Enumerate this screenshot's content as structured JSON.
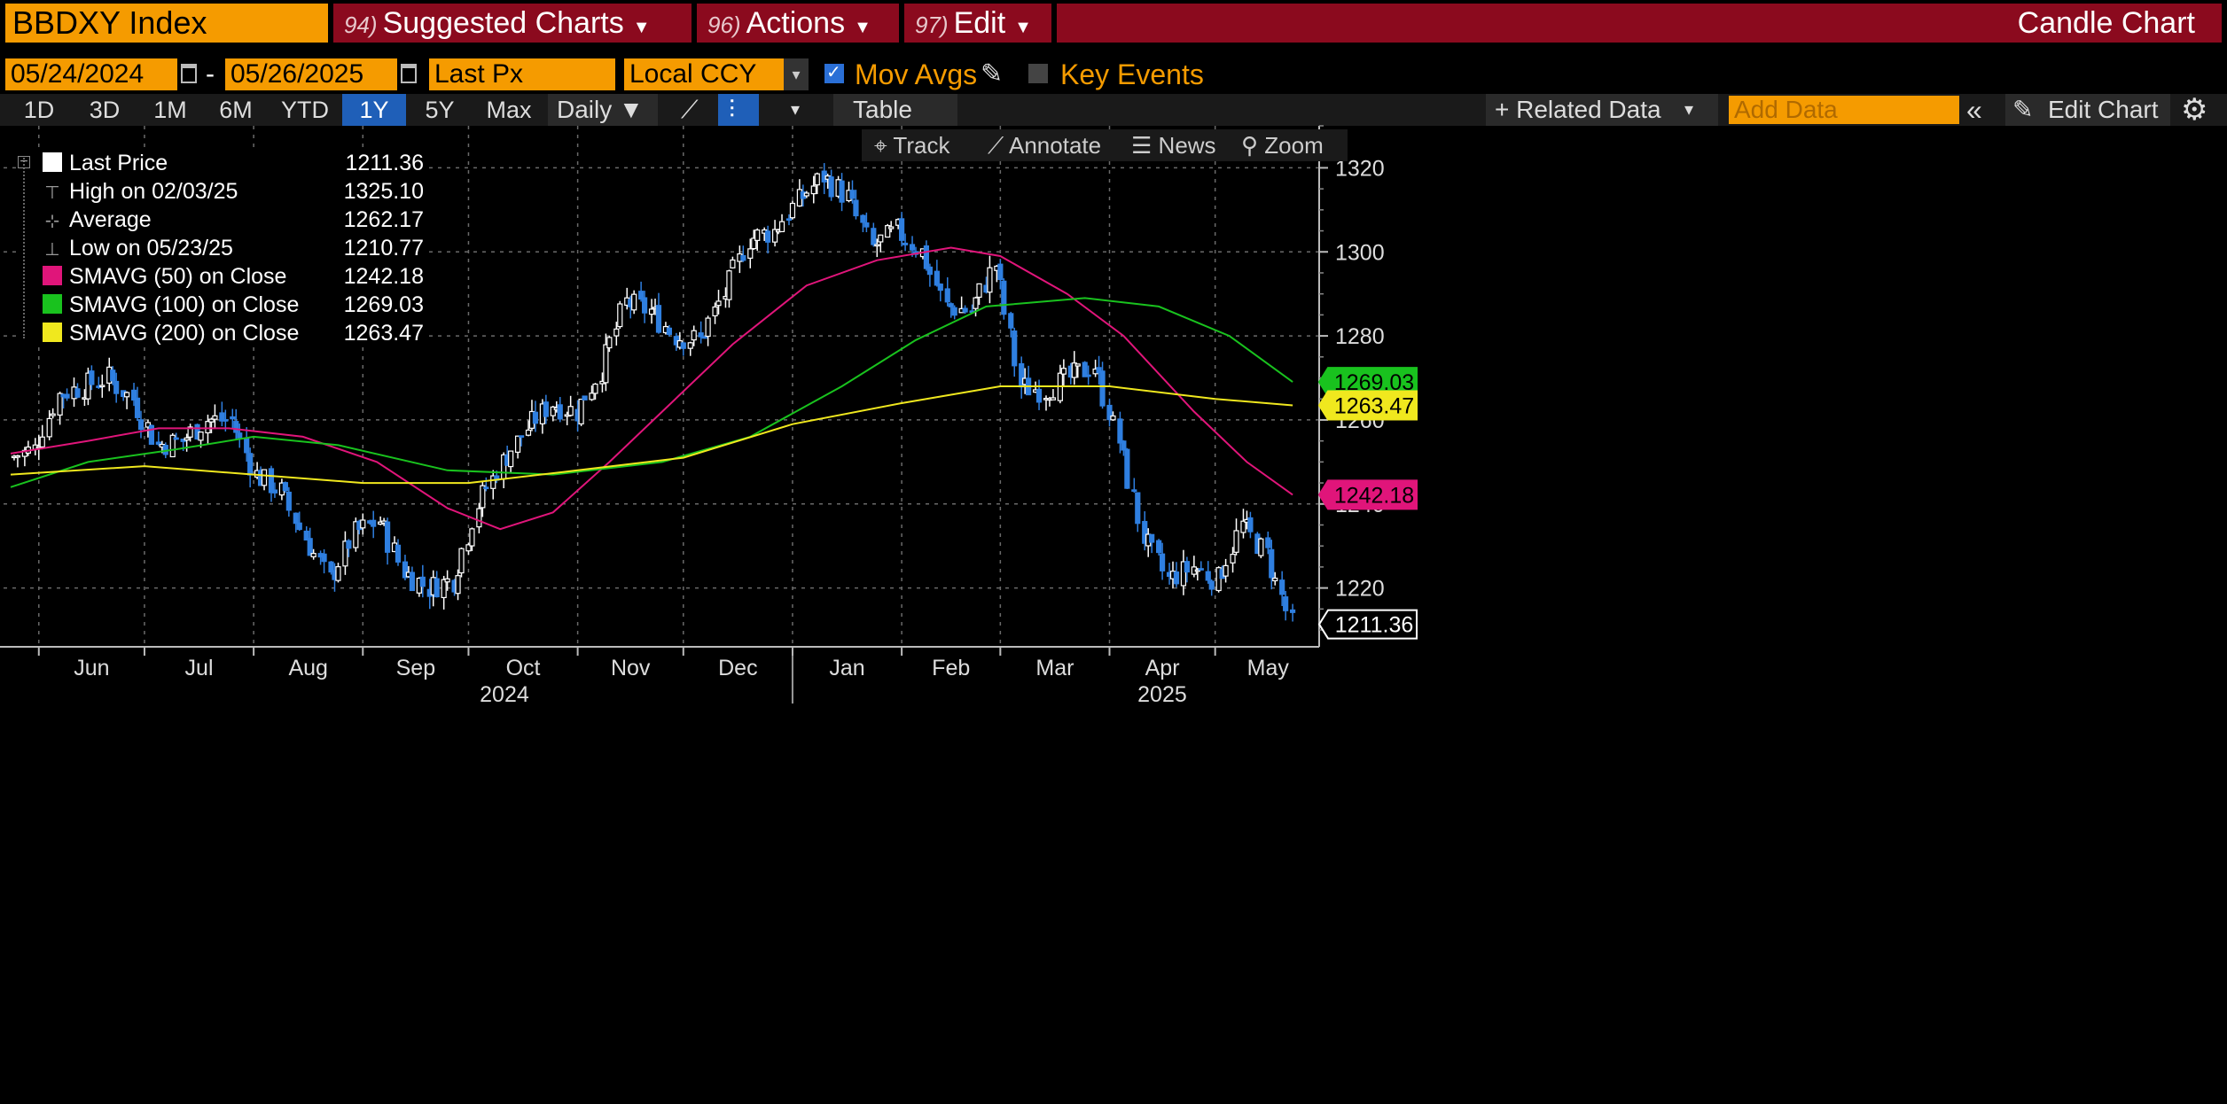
{
  "header": {
    "ticker": "BBDXY Index",
    "menus": [
      {
        "num": "94)",
        "label": "Suggested Charts"
      },
      {
        "num": "96)",
        "label": "Actions"
      },
      {
        "num": "97)",
        "label": "Edit"
      }
    ],
    "chart_kind": "Candle Chart"
  },
  "controls": {
    "start_date": "05/24/2024",
    "dash": "-",
    "end_date": "05/26/2025",
    "field": "Last Px",
    "currency": "Local CCY",
    "mov_avgs": "Mov Avgs",
    "key_events": "Key Events"
  },
  "toolbar": {
    "periods": [
      "1D",
      "3D",
      "1M",
      "6M",
      "YTD",
      "1Y",
      "5Y",
      "Max"
    ],
    "selected_period": "1Y",
    "frequency": "Daily ▼",
    "table": "Table",
    "related_data": "+ Related Data",
    "add_data_placeholder": "Add Data",
    "edit_chart": "Edit Chart"
  },
  "chart_tools": [
    "Track",
    "Annotate",
    "News",
    "Zoom"
  ],
  "legend": [
    {
      "label": "Last Price",
      "value": "1211.36",
      "color": "#ffffff",
      "kind": "swatch"
    },
    {
      "label": "High on 02/03/25",
      "value": "1325.10",
      "kind": "high"
    },
    {
      "label": "Average",
      "value": "1262.17",
      "kind": "avg"
    },
    {
      "label": "Low on 05/23/25",
      "value": "1210.77",
      "kind": "low"
    },
    {
      "label": "SMAVG (50)  on Close",
      "value": "1242.18",
      "color": "#e0157a",
      "kind": "swatch"
    },
    {
      "label": "SMAVG (100)  on Close",
      "value": "1269.03",
      "color": "#19c21e",
      "kind": "swatch"
    },
    {
      "label": "SMAVG (200)  on Close",
      "value": "1263.47",
      "color": "#f0e81e",
      "kind": "swatch"
    }
  ],
  "chart_data": {
    "type": "candlestick",
    "ylim": [
      1206,
      1330
    ],
    "yticks": [
      1220,
      1240,
      1260,
      1280,
      1300,
      1320
    ],
    "months": [
      "Jun",
      "Jul",
      "Aug",
      "Sep",
      "Oct",
      "Nov",
      "Dec",
      "Jan",
      "Feb",
      "Mar",
      "Apr",
      "May"
    ],
    "years": [
      "2024",
      "2025"
    ],
    "up_color": "#ffffff",
    "down_color": "#2f7fe0",
    "close_weekly": [
      {
        "date": "2024-05-24",
        "close": 1251
      },
      {
        "date": "2024-05-31",
        "close": 1253
      },
      {
        "date": "2024-06-07",
        "close": 1266
      },
      {
        "date": "2024-06-14",
        "close": 1268
      },
      {
        "date": "2024-06-21",
        "close": 1270
      },
      {
        "date": "2024-06-28",
        "close": 1265
      },
      {
        "date": "2024-07-05",
        "close": 1254
      },
      {
        "date": "2024-07-12",
        "close": 1255
      },
      {
        "date": "2024-07-19",
        "close": 1260
      },
      {
        "date": "2024-07-26",
        "close": 1260
      },
      {
        "date": "2024-08-02",
        "close": 1247
      },
      {
        "date": "2024-08-09",
        "close": 1243
      },
      {
        "date": "2024-08-16",
        "close": 1232
      },
      {
        "date": "2024-08-23",
        "close": 1222
      },
      {
        "date": "2024-08-30",
        "close": 1233
      },
      {
        "date": "2024-09-06",
        "close": 1236
      },
      {
        "date": "2024-09-13",
        "close": 1224
      },
      {
        "date": "2024-09-20",
        "close": 1220
      },
      {
        "date": "2024-09-27",
        "close": 1222
      },
      {
        "date": "2024-10-04",
        "close": 1240
      },
      {
        "date": "2024-10-11",
        "close": 1250
      },
      {
        "date": "2024-10-18",
        "close": 1258
      },
      {
        "date": "2024-10-25",
        "close": 1264
      },
      {
        "date": "2024-11-01",
        "close": 1262
      },
      {
        "date": "2024-11-08",
        "close": 1272
      },
      {
        "date": "2024-11-15",
        "close": 1288
      },
      {
        "date": "2024-11-22",
        "close": 1286
      },
      {
        "date": "2024-11-29",
        "close": 1280
      },
      {
        "date": "2024-12-06",
        "close": 1279
      },
      {
        "date": "2024-12-13",
        "close": 1290
      },
      {
        "date": "2024-12-20",
        "close": 1303
      },
      {
        "date": "2024-12-27",
        "close": 1305
      },
      {
        "date": "2025-01-03",
        "close": 1312
      },
      {
        "date": "2025-01-10",
        "close": 1318
      },
      {
        "date": "2025-01-17",
        "close": 1313
      },
      {
        "date": "2025-01-24",
        "close": 1301
      },
      {
        "date": "2025-01-31",
        "close": 1305
      },
      {
        "date": "2025-02-07",
        "close": 1300
      },
      {
        "date": "2025-02-14",
        "close": 1287
      },
      {
        "date": "2025-02-21",
        "close": 1286
      },
      {
        "date": "2025-02-28",
        "close": 1297
      },
      {
        "date": "2025-03-07",
        "close": 1268
      },
      {
        "date": "2025-03-14",
        "close": 1267
      },
      {
        "date": "2025-03-21",
        "close": 1270
      },
      {
        "date": "2025-03-28",
        "close": 1273
      },
      {
        "date": "2025-04-04",
        "close": 1255
      },
      {
        "date": "2025-04-11",
        "close": 1232
      },
      {
        "date": "2025-04-18",
        "close": 1222
      },
      {
        "date": "2025-04-25",
        "close": 1225
      },
      {
        "date": "2025-05-02",
        "close": 1222
      },
      {
        "date": "2025-05-09",
        "close": 1235
      },
      {
        "date": "2025-05-16",
        "close": 1228
      },
      {
        "date": "2025-05-23",
        "close": 1211.36
      }
    ],
    "series": [
      {
        "name": "SMAVG (50)  on Close",
        "color": "#e0157a",
        "points": [
          {
            "date": "2024-05-24",
            "value": 1252
          },
          {
            "date": "2024-06-15",
            "value": 1255
          },
          {
            "date": "2024-07-05",
            "value": 1258
          },
          {
            "date": "2024-07-25",
            "value": 1258
          },
          {
            "date": "2024-08-15",
            "value": 1256
          },
          {
            "date": "2024-09-05",
            "value": 1250
          },
          {
            "date": "2024-09-25",
            "value": 1239
          },
          {
            "date": "2024-10-10",
            "value": 1234
          },
          {
            "date": "2024-10-25",
            "value": 1238
          },
          {
            "date": "2024-11-10",
            "value": 1250
          },
          {
            "date": "2024-11-25",
            "value": 1262
          },
          {
            "date": "2024-12-15",
            "value": 1278
          },
          {
            "date": "2025-01-05",
            "value": 1292
          },
          {
            "date": "2025-01-25",
            "value": 1298
          },
          {
            "date": "2025-02-15",
            "value": 1301
          },
          {
            "date": "2025-03-01",
            "value": 1299
          },
          {
            "date": "2025-03-20",
            "value": 1290
          },
          {
            "date": "2025-04-05",
            "value": 1280
          },
          {
            "date": "2025-04-25",
            "value": 1262
          },
          {
            "date": "2025-05-10",
            "value": 1250
          },
          {
            "date": "2025-05-23",
            "value": 1242.18
          }
        ]
      },
      {
        "name": "SMAVG (100)  on Close",
        "color": "#19c21e",
        "points": [
          {
            "date": "2024-05-24",
            "value": 1244
          },
          {
            "date": "2024-06-15",
            "value": 1250
          },
          {
            "date": "2024-07-10",
            "value": 1253
          },
          {
            "date": "2024-08-01",
            "value": 1256
          },
          {
            "date": "2024-08-25",
            "value": 1254
          },
          {
            "date": "2024-09-25",
            "value": 1248
          },
          {
            "date": "2024-10-25",
            "value": 1247
          },
          {
            "date": "2024-11-25",
            "value": 1250
          },
          {
            "date": "2024-12-20",
            "value": 1256
          },
          {
            "date": "2025-01-15",
            "value": 1268
          },
          {
            "date": "2025-02-05",
            "value": 1279
          },
          {
            "date": "2025-02-25",
            "value": 1287
          },
          {
            "date": "2025-03-25",
            "value": 1289
          },
          {
            "date": "2025-04-15",
            "value": 1287
          },
          {
            "date": "2025-05-05",
            "value": 1280
          },
          {
            "date": "2025-05-23",
            "value": 1269.03
          }
        ]
      },
      {
        "name": "SMAVG (200)  on Close",
        "color": "#f0e81e",
        "points": [
          {
            "date": "2024-05-24",
            "value": 1247
          },
          {
            "date": "2024-07-01",
            "value": 1249
          },
          {
            "date": "2024-08-01",
            "value": 1247
          },
          {
            "date": "2024-09-01",
            "value": 1245
          },
          {
            "date": "2024-10-01",
            "value": 1245
          },
          {
            "date": "2024-11-01",
            "value": 1248
          },
          {
            "date": "2024-12-01",
            "value": 1251
          },
          {
            "date": "2025-01-01",
            "value": 1259
          },
          {
            "date": "2025-02-01",
            "value": 1264
          },
          {
            "date": "2025-03-01",
            "value": 1268
          },
          {
            "date": "2025-04-01",
            "value": 1268
          },
          {
            "date": "2025-05-01",
            "value": 1265
          },
          {
            "date": "2025-05-23",
            "value": 1263.47
          }
        ]
      }
    ],
    "axis_labels": [
      {
        "value": "1269.03",
        "color": "#19c21e"
      },
      {
        "value": "1263.47",
        "color": "#f0e81e"
      },
      {
        "value": "1242.18",
        "color": "#e0157a"
      },
      {
        "value": "1211.36",
        "color": "#ffffff"
      }
    ]
  }
}
